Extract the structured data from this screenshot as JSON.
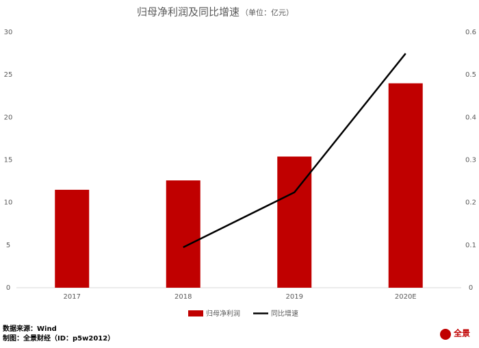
{
  "chart_data": {
    "type": "bar",
    "title": "归母净利润及同比增速",
    "subtitle": "（单位：亿元）",
    "categories": [
      "2017",
      "2018",
      "2019",
      "2020E"
    ],
    "series": [
      {
        "name": "归母净利润",
        "type": "bar",
        "color": "#c00000",
        "values": [
          11.5,
          12.6,
          15.4,
          24.0
        ]
      },
      {
        "name": "同比增速",
        "type": "line",
        "color": "#000000",
        "axis": "y2",
        "values": [
          null,
          0.095,
          0.224,
          0.55
        ]
      }
    ],
    "ylim": [
      0,
      30
    ],
    "yticks": [
      0,
      5,
      10,
      15,
      20,
      25,
      30
    ],
    "y2lim": [
      0,
      0.6
    ],
    "y2ticks": [
      0,
      0.1,
      0.2,
      0.3,
      0.4,
      0.5,
      0.6
    ],
    "grid": false,
    "legend": "bottom",
    "source": "数据来源：Wind",
    "credit": "制图：全景财经（ID：p5w2012）",
    "logo": "全景"
  }
}
